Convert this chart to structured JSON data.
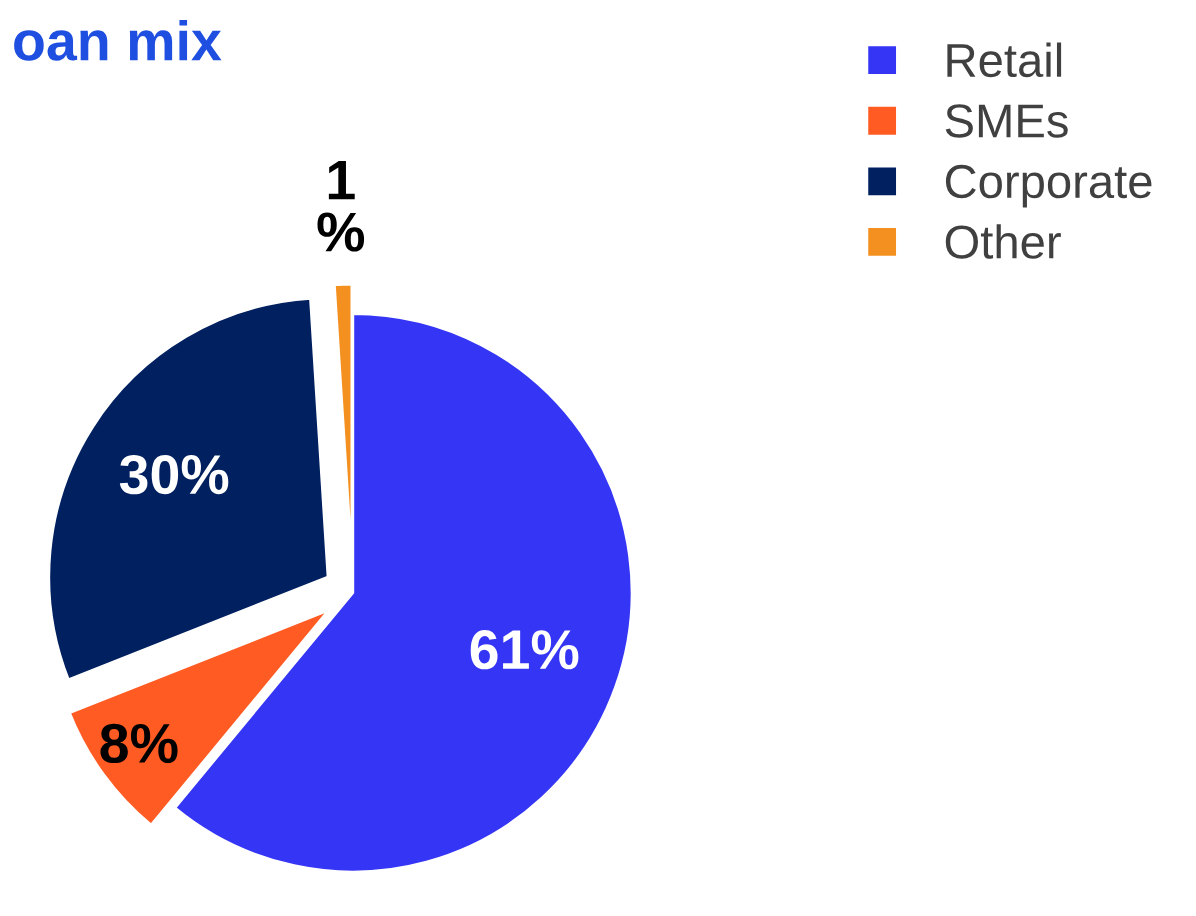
{
  "chart_data": {
    "type": "pie",
    "title": "oan mix",
    "categories": [
      "Retail",
      "SMEs",
      "Corporate",
      "Other"
    ],
    "values": [
      61,
      8,
      30,
      1
    ],
    "colors": [
      "#3535f5",
      "#ff5b22",
      "#002060",
      "#f39020"
    ],
    "value_labels": [
      "61%",
      "8%",
      "30%",
      "1\n%"
    ],
    "legend": "top right"
  }
}
